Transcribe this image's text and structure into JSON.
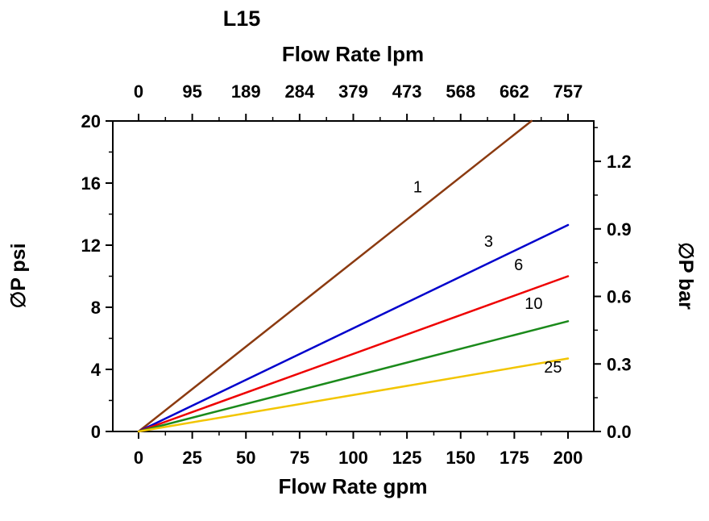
{
  "chart_data": {
    "type": "line",
    "title": "L15",
    "top_axis": {
      "label": "Flow Rate lpm",
      "labels": [
        "0",
        "95",
        "189",
        "284",
        "379",
        "473",
        "568",
        "662",
        "757"
      ],
      "gpm_positions": [
        0,
        25,
        50,
        75,
        100,
        125,
        150,
        175,
        200
      ]
    },
    "bottom_axis": {
      "label": "Flow Rate gpm",
      "labels": [
        "0",
        "25",
        "50",
        "75",
        "100",
        "125",
        "150",
        "175",
        "200"
      ],
      "values": [
        0,
        25,
        50,
        75,
        100,
        125,
        150,
        175,
        200
      ],
      "range": [
        0,
        200
      ]
    },
    "left_axis": {
      "label": "∅P psi",
      "labels": [
        "0",
        "4",
        "8",
        "12",
        "16",
        "20"
      ],
      "values": [
        0,
        4,
        8,
        12,
        16,
        20
      ],
      "range": [
        0,
        20
      ]
    },
    "right_axis": {
      "label": "∅P bar",
      "labels": [
        "0.0",
        "0.3",
        "0.6",
        "0.9",
        "1.2"
      ],
      "values": [
        0.0,
        0.3,
        0.6,
        0.9,
        1.2
      ],
      "psi_per_bar": 14.5
    },
    "series": [
      {
        "name": "1",
        "color": "#8B3A10",
        "points": [
          [
            0,
            0
          ],
          [
            183,
            20
          ]
        ],
        "label_pos": [
          130,
          15.4
        ]
      },
      {
        "name": "3",
        "color": "#0000CC",
        "points": [
          [
            0,
            0
          ],
          [
            200,
            13.3
          ]
        ],
        "label_pos": [
          163,
          11.9
        ]
      },
      {
        "name": "6",
        "color": "#EE0000",
        "points": [
          [
            0,
            0
          ],
          [
            200,
            10.0
          ]
        ],
        "label_pos": [
          177,
          10.4
        ]
      },
      {
        "name": "10",
        "color": "#1B8A1B",
        "points": [
          [
            0,
            0
          ],
          [
            200,
            7.1
          ]
        ],
        "label_pos": [
          184,
          7.9
        ]
      },
      {
        "name": "25",
        "color": "#F2C500",
        "points": [
          [
            0,
            0
          ],
          [
            200,
            4.7
          ]
        ],
        "label_pos": [
          193,
          3.8
        ]
      }
    ],
    "grid": "off",
    "legend": "inline-labels"
  }
}
